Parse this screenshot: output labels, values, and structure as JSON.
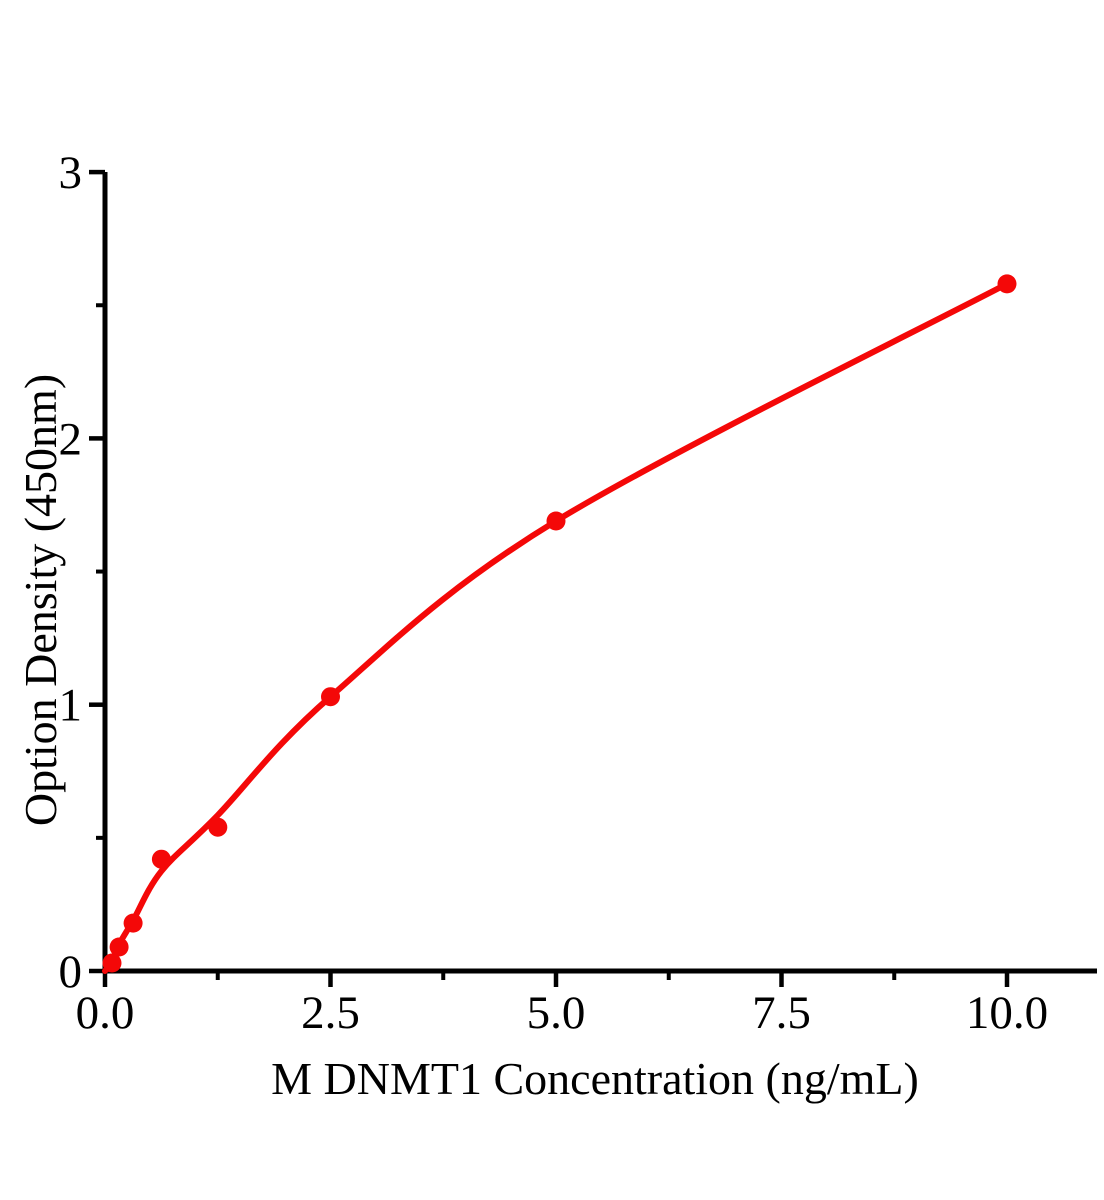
{
  "figure": {
    "background": "#ffffff"
  },
  "chart_data": {
    "type": "scatter",
    "title": "",
    "xlabel": "M DNMT1 Concentration（ng/mL）",
    "ylabel": "Option Density（450nm）",
    "grid": false,
    "legend": null,
    "points": {
      "x": [
        0.078,
        0.156,
        0.312,
        0.625,
        1.25,
        2.5,
        5.0,
        10.0
      ],
      "y": [
        0.03,
        0.09,
        0.18,
        0.42,
        0.54,
        1.03,
        1.69,
        2.58
      ]
    },
    "fit_curve_points": [
      [
        0,
        0
      ],
      [
        0.078,
        0.035
      ],
      [
        0.156,
        0.1
      ],
      [
        0.312,
        0.19
      ],
      [
        0.625,
        0.375
      ],
      [
        1.25,
        0.585
      ],
      [
        2.5,
        1.03
      ],
      [
        5.0,
        1.69
      ],
      [
        10.0,
        2.58
      ]
    ],
    "x_axis": {
      "range": [
        0,
        11
      ],
      "major_ticks": [
        0,
        2.5,
        5.0,
        7.5,
        10.0
      ],
      "tick_labels": [
        "0.0",
        "2.5",
        "5.0",
        "7.5",
        "10.0"
      ],
      "minor_ticks": [
        1.25,
        3.75,
        6.25,
        8.75
      ]
    },
    "y_axis": {
      "range": [
        0,
        3
      ],
      "major_ticks": [
        0,
        1,
        2,
        3
      ],
      "tick_labels": [
        "0",
        "1",
        "2",
        "3"
      ],
      "minor_ticks": [
        0.5,
        1.5,
        2.5
      ]
    },
    "colors": {
      "series": "#f40808",
      "axis": "#000000",
      "text": "#000000"
    }
  }
}
